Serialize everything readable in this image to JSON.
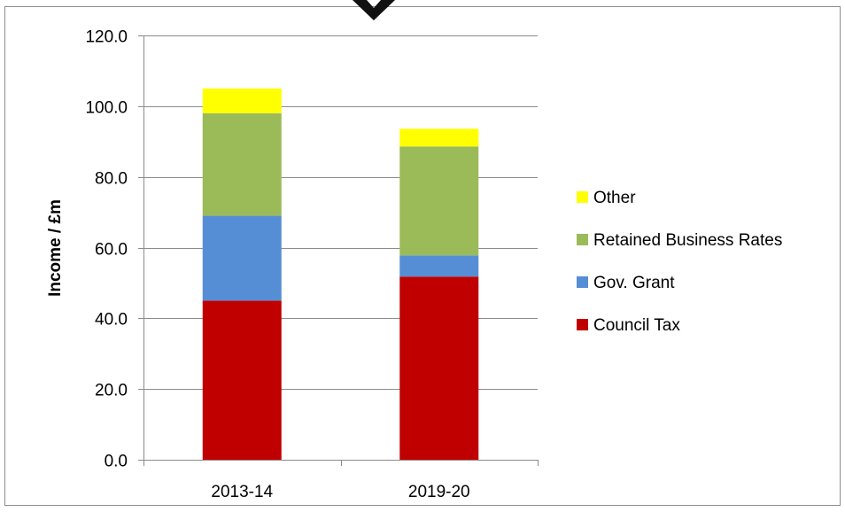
{
  "chart_data": {
    "type": "bar",
    "stacked": true,
    "categories": [
      "2013-14",
      "2019-20"
    ],
    "series": [
      {
        "name": "Council Tax",
        "color": "#c00000",
        "values": [
          45.0,
          51.8
        ]
      },
      {
        "name": "Gov. Grant",
        "color": "#558ed5",
        "values": [
          24.0,
          6.0
        ]
      },
      {
        "name": "Retained Business Rates",
        "color": "#9bbb59",
        "values": [
          29.0,
          30.8
        ]
      },
      {
        "name": "Other",
        "color": "#ffff00",
        "values": [
          7.0,
          5.0
        ]
      }
    ],
    "ylabel": "Income / £m",
    "ylim": [
      0,
      120
    ],
    "yticks": [
      0,
      20,
      40,
      60,
      80,
      100,
      120
    ],
    "ytick_labels": [
      "0.0",
      "20.0",
      "40.0",
      "60.0",
      "80.0",
      "100.0",
      "120.0"
    ],
    "grid": true,
    "legend_position": "right",
    "legend_order": [
      "Other",
      "Retained Business Rates",
      "Gov. Grant",
      "Council Tax"
    ]
  }
}
